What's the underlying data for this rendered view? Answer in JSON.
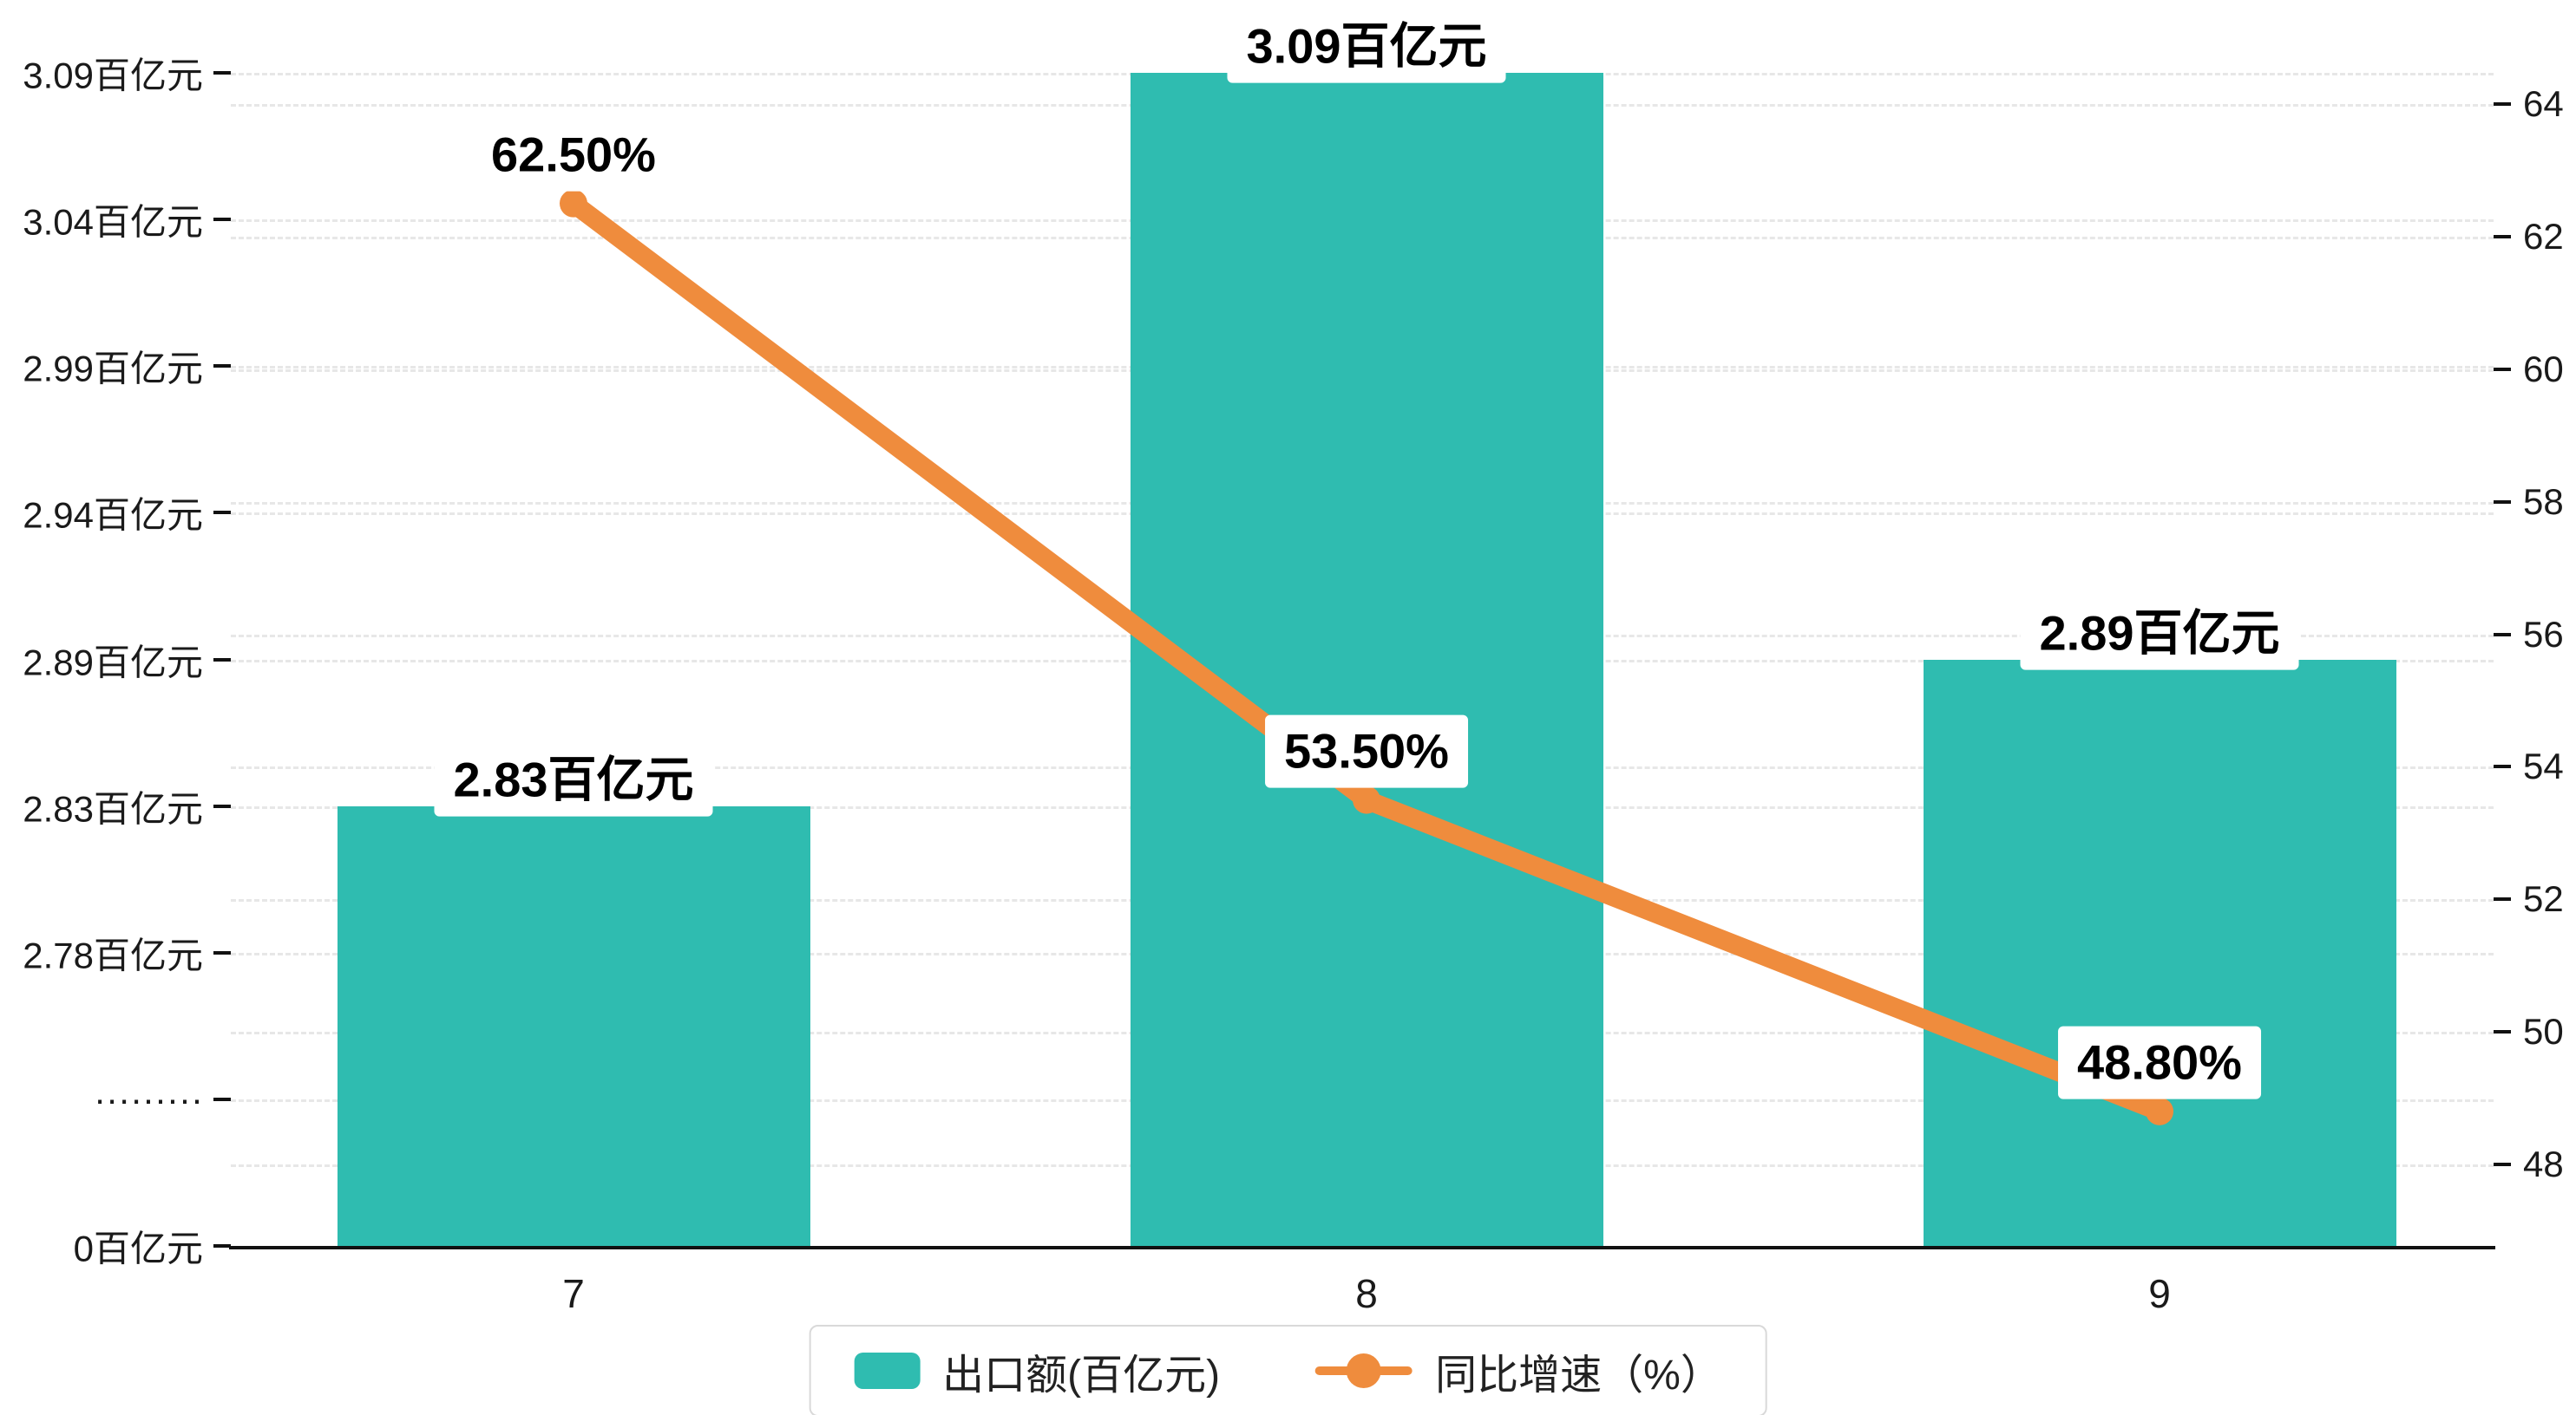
{
  "chart_data": {
    "type": "bar",
    "subtype": "bar-with-line-overlay",
    "categories": [
      "7",
      "8",
      "9"
    ],
    "series": [
      {
        "name": "出口额(百亿元)",
        "type": "bar",
        "axis": "left",
        "values": [
          2.83,
          3.09,
          2.89
        ],
        "labels": [
          "2.83百亿元",
          "3.09百亿元",
          "2.89百亿元"
        ]
      },
      {
        "name": "同比增速（%）",
        "type": "line",
        "axis": "right",
        "values": [
          62.5,
          53.5,
          48.8
        ],
        "labels": [
          "62.50%",
          "53.50%",
          "48.80%"
        ]
      }
    ],
    "left_axis": {
      "broken": true,
      "tick_labels": [
        "3.09百亿元",
        "3.04百亿元",
        "2.99百亿元",
        "2.94百亿元",
        "2.89百亿元",
        "2.83百亿元",
        "2.78百亿元",
        "·········",
        "0百亿元"
      ]
    },
    "right_axis": {
      "min": 48,
      "max": 64,
      "step": 2,
      "tick_labels": [
        "64",
        "62",
        "60",
        "58",
        "56",
        "54",
        "52",
        "50",
        "48"
      ]
    },
    "legend": [
      {
        "label": "出口额(百亿元)",
        "marker": "bar-swatch"
      },
      {
        "label": "同比增速（%）",
        "marker": "line-dot"
      }
    ],
    "grid": "dashed-horizontal",
    "title": "",
    "xlabel": "",
    "ylabel": ""
  },
  "colors": {
    "bar": "#2fbcb0",
    "line": "#ef8c3d",
    "grid": "#e7e7e7",
    "axis": "#111111",
    "text": "#1a1a1a",
    "label_bg": "#ffffff",
    "legend_border": "#d9d9d9"
  }
}
